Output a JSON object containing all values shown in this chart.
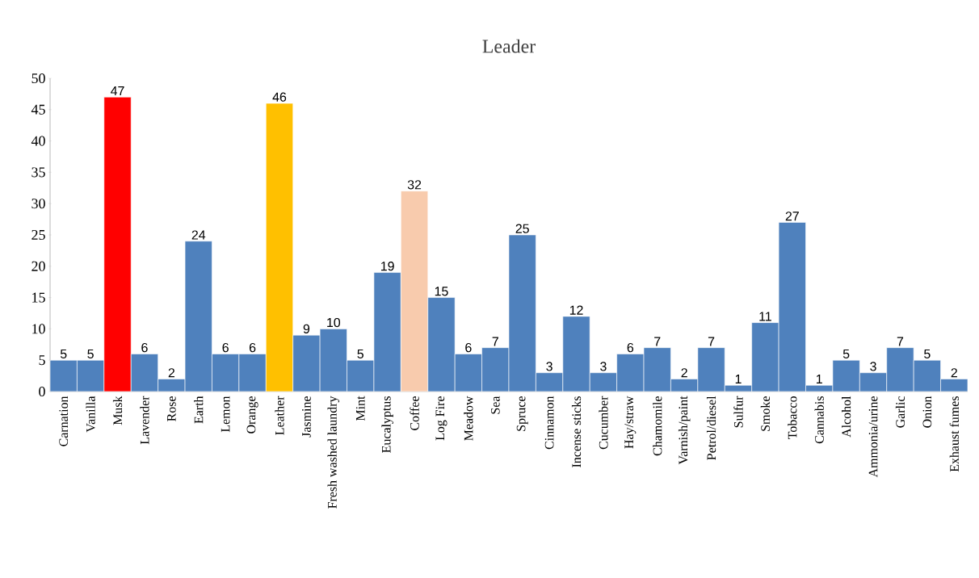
{
  "chart_data": {
    "type": "bar",
    "title": "Leader",
    "categories": [
      "Carnation",
      "Vanilla",
      "Musk",
      "Lavender",
      "Rose",
      "Earth",
      "Lemon",
      "Orange",
      "Leather",
      "Jasmine",
      "Fresh washed laundry",
      "Mint",
      "Eucalyptus",
      "Coffee",
      "Log Fire",
      "Meadow",
      "Sea",
      "Spruce",
      "Cinnamon",
      "Incense sticks",
      "Cucumber",
      "Hay/straw",
      "Chamomile",
      "Varnish/paint",
      "Petrol/diesel",
      "Sulfur",
      "Smoke",
      "Tobacco",
      "Cannabis",
      "Alcohol",
      "Ammonia/urine",
      "Garlic",
      "Onion",
      "Exhaust fumes"
    ],
    "values": [
      5,
      5,
      47,
      6,
      2,
      24,
      6,
      6,
      46,
      9,
      10,
      5,
      19,
      32,
      15,
      6,
      7,
      25,
      3,
      12,
      3,
      6,
      7,
      2,
      7,
      1,
      11,
      27,
      1,
      5,
      3,
      7,
      5,
      2
    ],
    "colors": [
      "#4f81bd",
      "#4f81bd",
      "#ff0000",
      "#4f81bd",
      "#4f81bd",
      "#4f81bd",
      "#4f81bd",
      "#4f81bd",
      "#ffc000",
      "#4f81bd",
      "#4f81bd",
      "#4f81bd",
      "#4f81bd",
      "#f8cbad",
      "#4f81bd",
      "#4f81bd",
      "#4f81bd",
      "#4f81bd",
      "#4f81bd",
      "#4f81bd",
      "#4f81bd",
      "#4f81bd",
      "#4f81bd",
      "#4f81bd",
      "#4f81bd",
      "#4f81bd",
      "#4f81bd",
      "#4f81bd",
      "#4f81bd",
      "#4f81bd",
      "#4f81bd",
      "#4f81bd",
      "#4f81bd",
      "#4f81bd"
    ],
    "ylim": [
      0,
      50
    ],
    "yticks": [
      0,
      5,
      10,
      15,
      20,
      25,
      30,
      35,
      40,
      45,
      50
    ],
    "data_labels": true,
    "grid": false
  }
}
